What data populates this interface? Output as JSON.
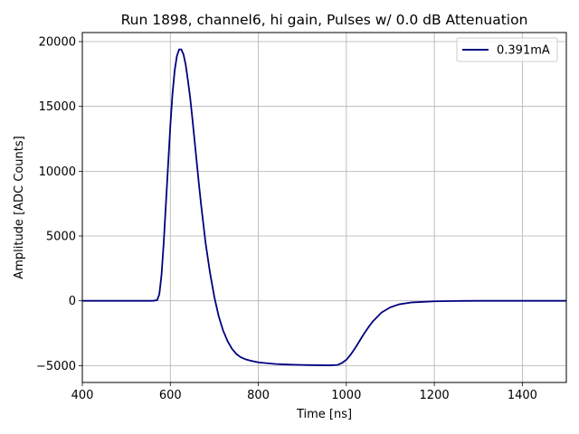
{
  "chart_data": {
    "type": "line",
    "title": "Run 1898, channel6, hi gain, Pulses w/ 0.0 dB Attenuation",
    "xlabel": "Time [ns]",
    "ylabel": "Amplitude [ADC Counts]",
    "xlim": [
      400,
      1500
    ],
    "ylim": [
      -6300,
      20700
    ],
    "x_ticks": [
      400,
      600,
      800,
      1000,
      1200,
      1400
    ],
    "x_tick_labels": [
      "400",
      "600",
      "800",
      "1000",
      "1200",
      "1400"
    ],
    "y_ticks": [
      -5000,
      0,
      5000,
      10000,
      15000,
      20000
    ],
    "y_tick_labels": [
      "−5000",
      "0",
      "5000",
      "10000",
      "15000",
      "20000"
    ],
    "grid": true,
    "legend": "top-right",
    "series": [
      {
        "name": "0.391mA",
        "color": "#000080",
        "x": [
          400,
          500,
          560,
          570,
          575,
          580,
          585,
          590,
          595,
          600,
          605,
          610,
          615,
          620,
          625,
          630,
          635,
          640,
          645,
          650,
          655,
          660,
          665,
          670,
          680,
          690,
          700,
          710,
          720,
          730,
          740,
          750,
          760,
          770,
          780,
          790,
          800,
          820,
          840,
          860,
          880,
          900,
          920,
          940,
          960,
          980,
          990,
          1000,
          1010,
          1020,
          1030,
          1040,
          1050,
          1060,
          1080,
          1100,
          1120,
          1150,
          1200,
          1250,
          1300,
          1400,
          1500
        ],
        "y": [
          0,
          0,
          0,
          50,
          500,
          2000,
          4500,
          7500,
          10500,
          13500,
          16000,
          17800,
          18900,
          19400,
          19400,
          19000,
          18200,
          17000,
          15700,
          14100,
          12400,
          10700,
          9000,
          7400,
          4500,
          2200,
          300,
          -1200,
          -2300,
          -3100,
          -3700,
          -4100,
          -4350,
          -4500,
          -4600,
          -4680,
          -4750,
          -4820,
          -4880,
          -4910,
          -4930,
          -4950,
          -4960,
          -4970,
          -4980,
          -4950,
          -4800,
          -4550,
          -4150,
          -3650,
          -3100,
          -2550,
          -2050,
          -1600,
          -900,
          -500,
          -270,
          -120,
          -40,
          -10,
          0,
          0,
          0
        ]
      }
    ]
  }
}
